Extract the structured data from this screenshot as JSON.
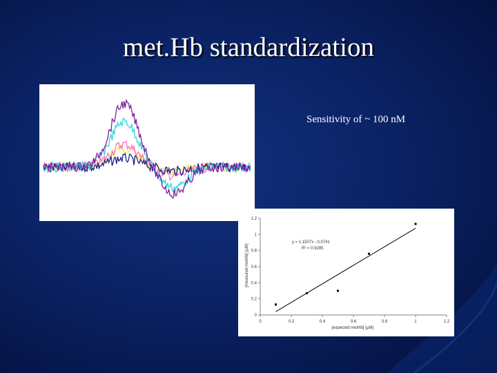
{
  "slide": {
    "title": "met.Hb standardization",
    "note": "Sensitivity of ~ 100 nM"
  },
  "chart_data": [
    {
      "type": "line",
      "description_role": "spectra",
      "series": [
        {
          "color": "#7a1fa0",
          "peak": 1.0,
          "trough": -0.42
        },
        {
          "color": "#2fd8d8",
          "peak": 0.72,
          "trough": -0.32
        },
        {
          "color": "#f0e84a",
          "peak": 0.3,
          "trough": -0.08
        },
        {
          "color": "#ff70c8",
          "peak": 0.36,
          "trough": -0.14
        },
        {
          "color": "#1c1c8a",
          "peak": 0.14,
          "trough": -0.06
        }
      ],
      "grid": false,
      "legend": "none"
    },
    {
      "type": "scatter",
      "x": [
        0.1,
        0.3,
        0.5,
        0.7,
        1.0
      ],
      "y": [
        0.13,
        0.27,
        0.3,
        0.76,
        1.13
      ],
      "fit": {
        "slope": 1.1507,
        "intercept": -0.0741
      },
      "equation": "y = 1.1507x - 0.0741",
      "r2_label": "R² = 0.9285",
      "xlabel": "[expected metHb] (μM)",
      "ylabel": "[measured metHb] (μM)",
      "xlim": [
        0,
        1.2
      ],
      "ylim": [
        0,
        1.2
      ],
      "xticks": [
        "0",
        "0.2",
        "0.4",
        "0.6",
        "0.8",
        "1",
        "1.2"
      ],
      "yticks": [
        "0",
        "0.2",
        "0.4",
        "0.6",
        "0.8",
        "1",
        "1.2"
      ],
      "grid": false,
      "legend": "none"
    }
  ]
}
